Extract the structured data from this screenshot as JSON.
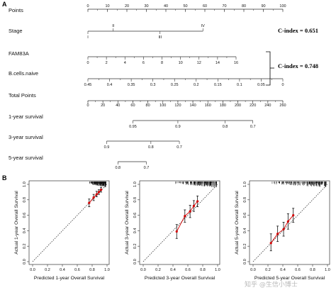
{
  "panel_labels": {
    "a": "A",
    "b": "B"
  },
  "watermark": "知乎 @生信小博士",
  "chart_data": [
    {
      "type": "nomogram",
      "panel": "A",
      "rows": [
        {
          "key": "points",
          "label": "Points",
          "axis": {
            "min": 0,
            "max": 100,
            "ticks": [
              0,
              10,
              20,
              30,
              40,
              50,
              60,
              70,
              80,
              90,
              100
            ],
            "labels": [
              "0",
              "10",
              "20",
              "30",
              "40",
              "50",
              "60",
              "70",
              "80",
              "90",
              "100"
            ],
            "minor": 5
          }
        },
        {
          "key": "stage",
          "label": "Stage",
          "categories": [
            {
              "name": "I",
              "points": 0,
              "side": "below"
            },
            {
              "name": "II",
              "points": 13,
              "side": "above"
            },
            {
              "name": "III",
              "points": 37,
              "side": "below"
            },
            {
              "name": "IV",
              "points": 59,
              "side": "above"
            }
          ]
        },
        {
          "key": "fam83a",
          "label": "FAM83A",
          "axis": {
            "min": 0,
            "max": 16,
            "points_start": 0,
            "points_end": 76,
            "ticks": [
              0,
              2,
              4,
              6,
              8,
              10,
              12,
              14,
              16
            ],
            "labels": [
              "0",
              "2",
              "4",
              "6",
              "8",
              "10",
              "12",
              "14",
              "16"
            ]
          }
        },
        {
          "key": "bcells",
          "label": "B.cells.naive",
          "axis": {
            "min": 0,
            "max": 0.45,
            "reversed": true,
            "points_start": 0,
            "points_end": 100,
            "ticks": [
              0.45,
              0.4,
              0.35,
              0.3,
              0.25,
              0.2,
              0.15,
              0.1,
              0.05,
              0
            ],
            "labels": [
              "0.45",
              "0.4",
              "0.35",
              "0.3",
              "0.25",
              "0.2",
              "0.15",
              "0.1",
              "0.05",
              "0"
            ]
          }
        },
        {
          "key": "total",
          "label": "Total Points",
          "axis": {
            "min": 0,
            "max": 260,
            "ticks": [
              0,
              20,
              40,
              60,
              80,
              100,
              120,
              140,
              160,
              180,
              200,
              220,
              240,
              260
            ],
            "labels": [
              "0",
              "20",
              "40",
              "60",
              "80",
              "100",
              "120",
              "140",
              "160",
              "180",
              "200",
              "220",
              "240",
              "260"
            ],
            "minor": 10
          }
        },
        {
          "key": "y1",
          "label": "1-year survival",
          "ticks": [
            {
              "value": "0.95",
              "total": 60
            },
            {
              "value": "0.9",
              "total": 120
            },
            {
              "value": "0.8",
              "total": 183
            },
            {
              "value": "0.7",
              "total": 220
            }
          ]
        },
        {
          "key": "y3",
          "label": "3-year survival",
          "ticks": [
            {
              "value": "0.9",
              "total": 25
            },
            {
              "value": "0.8",
              "total": 84
            },
            {
              "value": "0.7",
              "total": 122
            }
          ]
        },
        {
          "key": "y5",
          "label": "5-year survival",
          "ticks": [
            {
              "value": "0.8",
              "total": 40
            },
            {
              "value": "0.7",
              "total": 78
            }
          ]
        }
      ],
      "cindex": [
        {
          "text": "C-index = 0.651",
          "rows": [
            "stage"
          ]
        },
        {
          "text": "C-index = 0.748",
          "rows": [
            "fam83a",
            "bcells"
          ]
        }
      ]
    },
    {
      "type": "calibration",
      "panel": "B",
      "xlabel": "Predicted 1-year Overall Survival",
      "ylabel": "Actual 1-year Overall Survival",
      "xlim": [
        0,
        1
      ],
      "ylim": [
        0,
        1
      ],
      "ticks": [
        "0.0",
        "0.2",
        "0.4",
        "0.6",
        "0.8",
        "1.0"
      ],
      "rug_range": [
        0.75,
        0.99
      ],
      "points": [
        {
          "x": 0.76,
          "y": 0.76,
          "lo": 0.71,
          "hi": 0.81
        },
        {
          "x": 0.82,
          "y": 0.83,
          "lo": 0.79,
          "hi": 0.87
        },
        {
          "x": 0.86,
          "y": 0.87,
          "lo": 0.84,
          "hi": 0.91
        },
        {
          "x": 0.89,
          "y": 0.9,
          "lo": 0.87,
          "hi": 0.93
        },
        {
          "x": 0.92,
          "y": 0.93,
          "lo": 0.9,
          "hi": 0.96
        }
      ]
    },
    {
      "type": "calibration",
      "panel": "B",
      "xlabel": "Predicted 3-year Overall Survival",
      "ylabel": "Actual 3-year Overall Survival",
      "xlim": [
        0,
        1
      ],
      "ylim": [
        0,
        1
      ],
      "ticks": [
        "0.0",
        "0.2",
        "0.4",
        "0.6",
        "0.8",
        "1.0"
      ],
      "rug_range": [
        0.4,
        0.99
      ],
      "points": [
        {
          "x": 0.45,
          "y": 0.39,
          "lo": 0.3,
          "hi": 0.48
        },
        {
          "x": 0.56,
          "y": 0.59,
          "lo": 0.51,
          "hi": 0.67
        },
        {
          "x": 0.63,
          "y": 0.65,
          "lo": 0.57,
          "hi": 0.73
        },
        {
          "x": 0.68,
          "y": 0.72,
          "lo": 0.65,
          "hi": 0.79
        },
        {
          "x": 0.73,
          "y": 0.78,
          "lo": 0.71,
          "hi": 0.85
        }
      ]
    },
    {
      "type": "calibration",
      "panel": "B",
      "xlabel": "Predicted 5-year Overall Survival",
      "ylabel": "Actual 5-year Overall Survival",
      "xlim": [
        0,
        1
      ],
      "ylim": [
        0,
        1
      ],
      "ticks": [
        "0.0",
        "0.2",
        "0.4",
        "0.6",
        "0.8",
        "1.0"
      ],
      "rug_range": [
        0.2,
        0.99
      ],
      "points": [
        {
          "x": 0.24,
          "y": 0.24,
          "lo": 0.14,
          "hi": 0.36
        },
        {
          "x": 0.33,
          "y": 0.36,
          "lo": 0.26,
          "hi": 0.46
        },
        {
          "x": 0.41,
          "y": 0.42,
          "lo": 0.33,
          "hi": 0.51
        },
        {
          "x": 0.47,
          "y": 0.52,
          "lo": 0.42,
          "hi": 0.62
        },
        {
          "x": 0.54,
          "y": 0.6,
          "lo": 0.51,
          "hi": 0.69
        }
      ]
    }
  ]
}
